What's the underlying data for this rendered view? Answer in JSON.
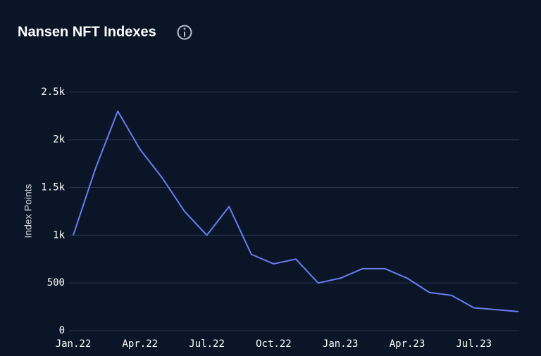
{
  "chart_data": {
    "type": "line",
    "title": "Nansen NFT Indexes",
    "y_label": "Index Points",
    "x": [
      "2022-01",
      "2022-02",
      "2022-03",
      "2022-04",
      "2022-05",
      "2022-06",
      "2022-07",
      "2022-08",
      "2022-09",
      "2022-10",
      "2022-11",
      "2022-12",
      "2023-01",
      "2023-02",
      "2023-03",
      "2023-04",
      "2023-05",
      "2023-06",
      "2023-07",
      "2023-08",
      "2023-09"
    ],
    "series": [
      {
        "name": "Index",
        "color": "#6b7cf0",
        "values": [
          1000,
          1700,
          2300,
          1900,
          1600,
          1250,
          1000,
          1300,
          800,
          700,
          750,
          500,
          550,
          650,
          650,
          550,
          400,
          370,
          240,
          220,
          200
        ]
      }
    ],
    "xticks": [
      {
        "value": "2022-01",
        "label": "Jan.22"
      },
      {
        "value": "2022-04",
        "label": "Apr.22"
      },
      {
        "value": "2022-07",
        "label": "Jul.22"
      },
      {
        "value": "2022-10",
        "label": "Oct.22"
      },
      {
        "value": "2023-01",
        "label": "Jan.23"
      },
      {
        "value": "2023-04",
        "label": "Apr.23"
      },
      {
        "value": "2023-07",
        "label": "Jul.23"
      }
    ],
    "ylim": [
      0,
      2750
    ],
    "yticks": [
      0,
      500,
      {
        "value": 1000,
        "label": "1k"
      },
      {
        "value": 1500,
        "label": "1.5k"
      },
      {
        "value": 2000,
        "label": "2k"
      },
      {
        "value": 2500,
        "label": "2.5k"
      }
    ],
    "grid": true
  }
}
